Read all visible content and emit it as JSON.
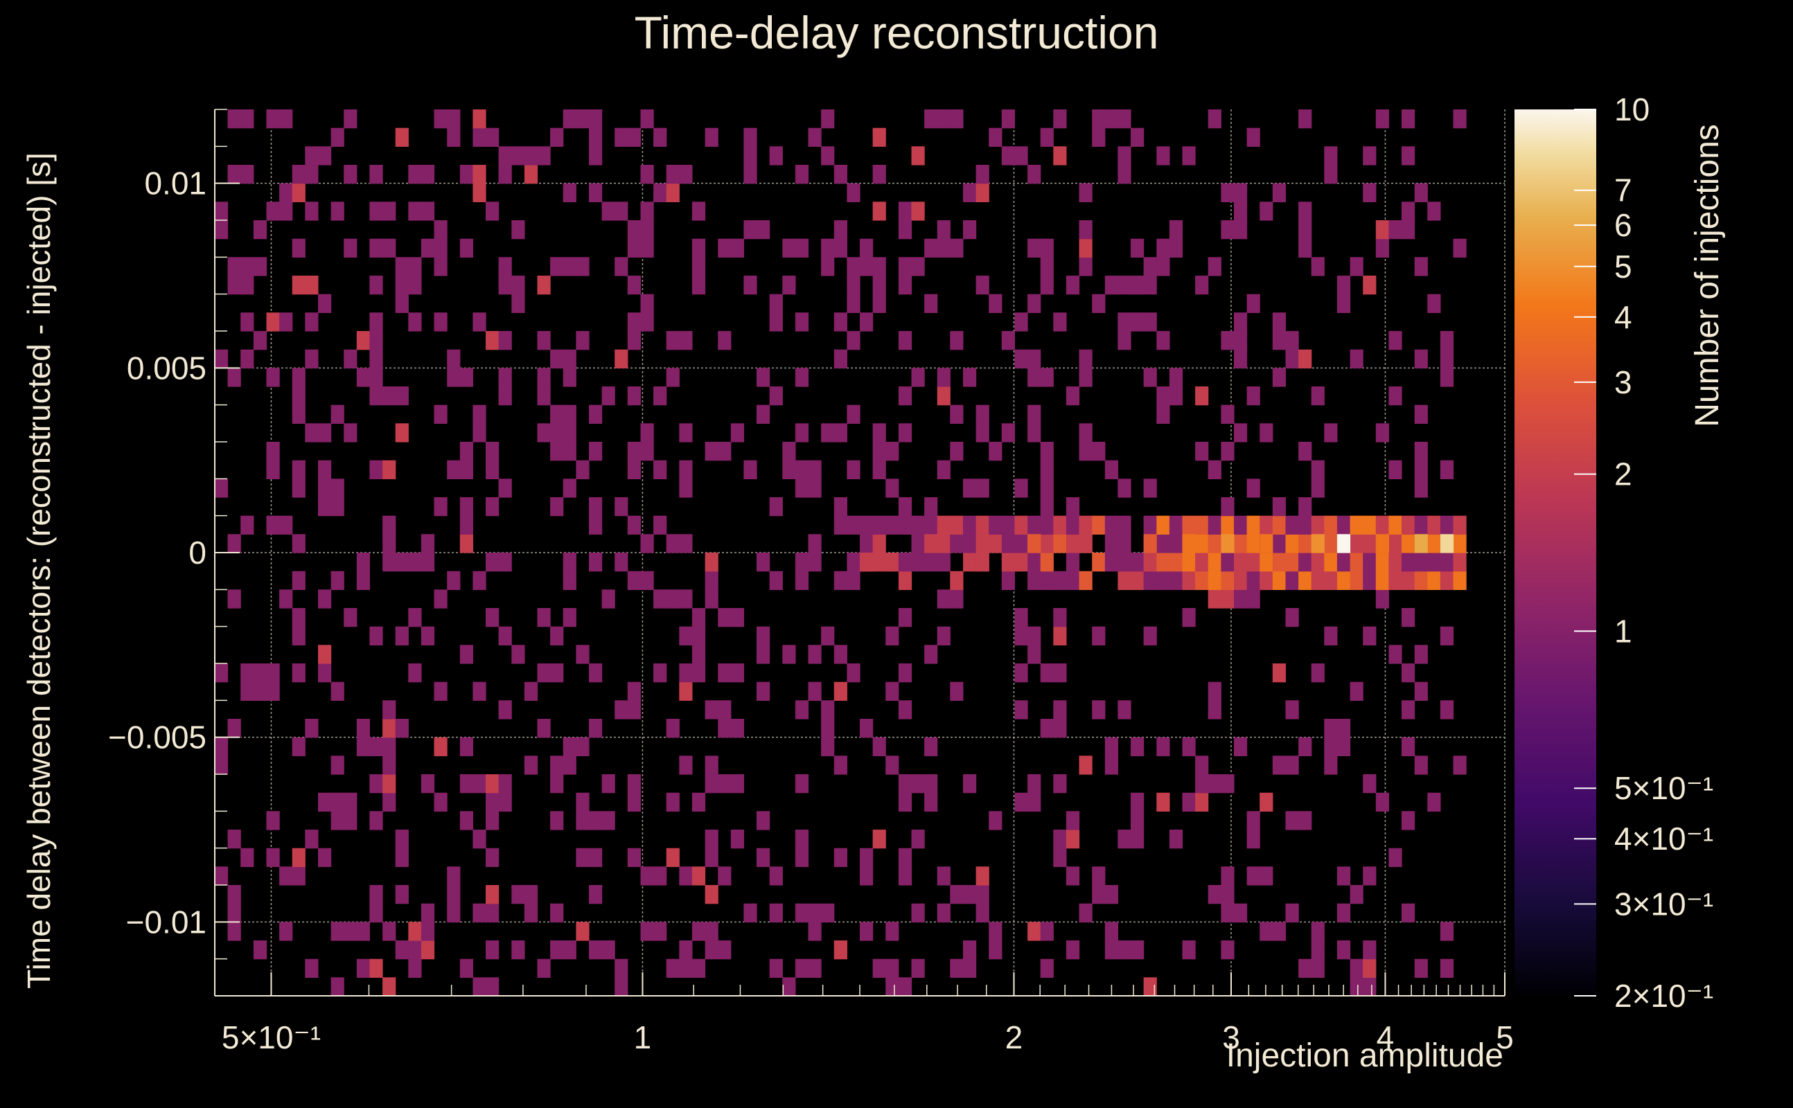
{
  "chart_data": {
    "type": "heatmap",
    "title": "Time-delay reconstruction",
    "xlabel": "Injection amplitude",
    "ylabel": "Time delay between detectors: (reconstructed - injected) [s]",
    "colorbar_label": "Number of injections",
    "x_scale": "log",
    "xlim": [
      0.45,
      5.0
    ],
    "ylim": [
      -0.012,
      0.012
    ],
    "z_scale": "log",
    "zlim": [
      0.2,
      10
    ],
    "x_ticks": [
      {
        "value": 0.5,
        "label": "5×10⁻¹"
      },
      {
        "value": 1,
        "label": "1"
      },
      {
        "value": 2,
        "label": "2"
      },
      {
        "value": 3,
        "label": "3"
      },
      {
        "value": 4,
        "label": "4"
      },
      {
        "value": 5,
        "label": "5"
      }
    ],
    "y_ticks": [
      {
        "value": 0.01,
        "label": "0.01"
      },
      {
        "value": 0.005,
        "label": "0.005"
      },
      {
        "value": 0,
        "label": "0"
      },
      {
        "value": -0.005,
        "label": "−0.005"
      },
      {
        "value": -0.01,
        "label": "−0.01"
      }
    ],
    "z_ticks": [
      {
        "value": 10,
        "label": "10"
      },
      {
        "value": 7,
        "label": "7"
      },
      {
        "value": 6,
        "label": "6"
      },
      {
        "value": 5,
        "label": "5"
      },
      {
        "value": 4,
        "label": "4"
      },
      {
        "value": 3,
        "label": "3"
      },
      {
        "value": 2,
        "label": "2"
      },
      {
        "value": 1,
        "label": "1"
      },
      {
        "value": 0.5,
        "label": "5×10⁻¹"
      },
      {
        "value": 0.4,
        "label": "4×10⁻¹"
      },
      {
        "value": 0.3,
        "label": "3×10⁻¹"
      },
      {
        "value": 0.2,
        "label": "2×10⁻¹"
      }
    ],
    "colormap": [
      "#000000",
      "#1b0c41",
      "#4a0c6b",
      "#781c6d",
      "#a52c60",
      "#cf4446",
      "#ed6925",
      "#fb9b06",
      "#f7d13d",
      "#fcffa4"
    ],
    "colormap_note": "inferno-like",
    "grid": true,
    "bins": {
      "x_edges_count": 100,
      "y_edges_count": 48,
      "description": "Sparse background of count 1 bins across the plane with a dense band of counts 2-10 near y = 0 for amplitudes above ~1.5"
    },
    "band": [
      {
        "x": 1.5,
        "y": -0.0003,
        "value": 2
      },
      {
        "x": 1.7,
        "y": 0,
        "value": 2
      },
      {
        "x": 1.9,
        "y": -0.0002,
        "value": 2
      },
      {
        "x": 2.1,
        "y": 0,
        "value": 3
      },
      {
        "x": 2.3,
        "y": 0,
        "value": 2
      },
      {
        "x": 2.6,
        "y": 0,
        "value": 3
      },
      {
        "x": 2.8,
        "y": 0.0001,
        "value": 4
      },
      {
        "x": 3.0,
        "y": 0,
        "value": 5
      },
      {
        "x": 3.2,
        "y": 0.0002,
        "value": 4
      },
      {
        "x": 3.5,
        "y": 0,
        "value": 5
      },
      {
        "x": 3.7,
        "y": 0,
        "value": 10
      },
      {
        "x": 4.0,
        "y": 0,
        "value": 4
      },
      {
        "x": 4.3,
        "y": 0.0001,
        "value": 6
      },
      {
        "x": 4.5,
        "y": 0.0002,
        "value": 8
      }
    ]
  }
}
